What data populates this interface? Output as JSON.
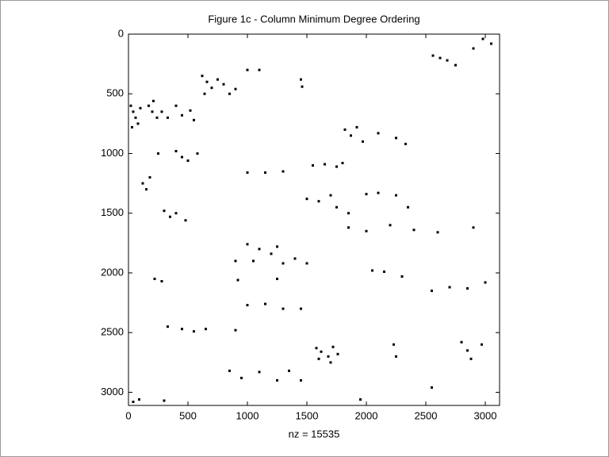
{
  "chart_data": {
    "type": "scatter",
    "title": "Figure 1c - Column Minimum Degree Ordering",
    "x_label": "nz = 15535",
    "color": "#000000",
    "x": [
      20,
      40,
      60,
      80,
      30,
      100,
      170,
      200,
      240,
      210,
      280,
      330,
      400,
      450,
      520,
      550,
      620,
      660,
      700,
      750,
      800,
      850,
      900,
      640,
      1000,
      1100,
      1450,
      1460,
      1820,
      1870,
      1920,
      1970,
      2100,
      2250,
      2330,
      2560,
      2620,
      2680,
      2750,
      2900,
      2980,
      3050,
      250,
      400,
      450,
      500,
      580,
      1550,
      1650,
      1750,
      1800,
      1000,
      1150,
      1300,
      120,
      150,
      180,
      1500,
      1600,
      1700,
      1750,
      1850,
      2000,
      2100,
      2250,
      2350,
      300,
      350,
      400,
      480,
      1850,
      2000,
      2200,
      2400,
      2600,
      2900,
      1000,
      1100,
      1250,
      1200,
      900,
      1050,
      1300,
      1400,
      1500,
      220,
      280,
      920,
      1250,
      2050,
      2150,
      2300,
      2550,
      2700,
      2850,
      3000,
      1000,
      1150,
      1300,
      1450,
      1580,
      1620,
      1680,
      1720,
      1760,
      1600,
      1700,
      2230,
      2250,
      2800,
      2850,
      2880,
      2970,
      330,
      450,
      550,
      650,
      900,
      850,
      950,
      1100,
      1250,
      1350,
      1450,
      40,
      90,
      300,
      2550,
      1950
    ],
    "y": [
      600,
      650,
      700,
      750,
      780,
      620,
      600,
      650,
      700,
      560,
      650,
      700,
      600,
      680,
      640,
      720,
      350,
      400,
      450,
      380,
      420,
      500,
      460,
      500,
      300,
      300,
      380,
      440,
      800,
      850,
      780,
      900,
      830,
      870,
      920,
      180,
      200,
      220,
      260,
      120,
      40,
      80,
      1000,
      980,
      1030,
      1060,
      1000,
      1100,
      1090,
      1110,
      1080,
      1160,
      1160,
      1150,
      1250,
      1300,
      1200,
      1380,
      1400,
      1350,
      1450,
      1500,
      1340,
      1330,
      1350,
      1450,
      1480,
      1530,
      1500,
      1560,
      1620,
      1650,
      1600,
      1640,
      1660,
      1620,
      1760,
      1800,
      1780,
      1840,
      1900,
      1900,
      1920,
      1880,
      1920,
      2050,
      2070,
      2060,
      2050,
      1980,
      1990,
      2030,
      2150,
      2120,
      2130,
      2080,
      2270,
      2260,
      2300,
      2300,
      2630,
      2660,
      2700,
      2620,
      2680,
      2720,
      2750,
      2600,
      2700,
      2580,
      2650,
      2720,
      2600,
      2450,
      2470,
      2490,
      2470,
      2480,
      2820,
      2880,
      2830,
      2900,
      2820,
      2900,
      3080,
      3060,
      3070,
      2960,
      3060
    ],
    "xlim": [
      0,
      3120
    ],
    "ylim": [
      0,
      3110
    ],
    "y_reversed": true,
    "xticks": [
      0,
      500,
      1000,
      1500,
      2000,
      2500,
      3000
    ],
    "yticks": [
      0,
      500,
      1000,
      1500,
      2000,
      2500,
      3000
    ]
  }
}
